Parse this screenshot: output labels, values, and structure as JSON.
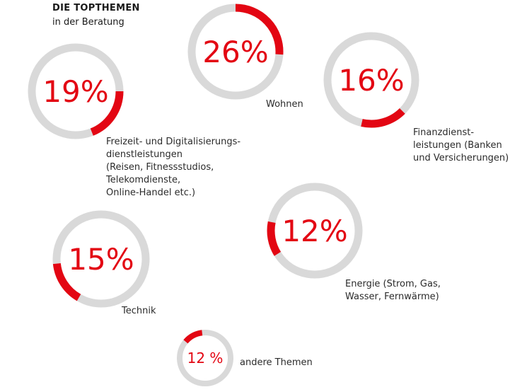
{
  "header": {
    "title": "DIE TOPTHEMEN",
    "subtitle": "in der Beratung"
  },
  "chart_data": {
    "type": "pie",
    "title": "DIE TOPTHEMEN",
    "subtitle": "in der Beratung",
    "series": [
      {
        "name": "Wohnen",
        "value": 26,
        "value_label": "26%",
        "label": "Wohnen"
      },
      {
        "name": "Finanzdienstleistungen",
        "value": 16,
        "value_label": "16%",
        "label": "Finanzdienst-\nleistungen (Banken\nund Versicherungen)"
      },
      {
        "name": "Freizeit- und Digitalisierungsdienstleistungen",
        "value": 19,
        "value_label": "19%",
        "label": "Freizeit- und Digitalisierungs-\ndienstleistungen\n(Reisen, Fitnessstudios,\nTelekomdienste,\nOnline-Handel etc.)"
      },
      {
        "name": "Energie",
        "value": 12,
        "value_label": "12%",
        "label": "Energie (Strom, Gas,\nWasser, Fernwärme)"
      },
      {
        "name": "Technik",
        "value": 15,
        "value_label": "15%",
        "label": "Technik"
      },
      {
        "name": "andere Themen",
        "value": 12,
        "value_label": "12 %",
        "label": "andere Themen"
      }
    ],
    "colors": {
      "accent": "#e30613",
      "track": "#d9d9d9",
      "text": "#2b2b2b"
    }
  }
}
